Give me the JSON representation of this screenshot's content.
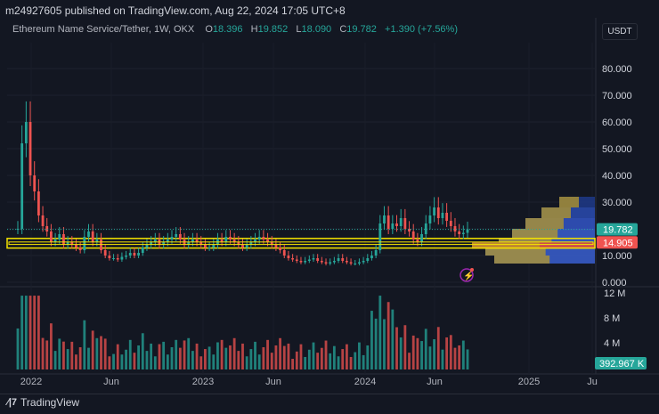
{
  "header": {
    "published": "m24927605 published on TradingView.com, Aug 22, 2024 17:05 UTC+8"
  },
  "legend": {
    "symbol": "Ethereum Name Service/Tether, 1W, OKX",
    "o_label": "O",
    "o": "18.396",
    "h_label": "H",
    "h": "19.852",
    "l_label": "L",
    "l": "18.090",
    "c_label": "C",
    "c": "19.782",
    "change": "+1.390 (+7.56%)"
  },
  "currency_button": "USDT",
  "footer": {
    "brand": "TradingView"
  },
  "chart_data": {
    "type": "candlestick",
    "symbol": "Ethereum Name Service/Tether",
    "interval": "1W",
    "exchange": "OKX",
    "y_axis": {
      "ticks": [
        "80.000",
        "70.000",
        "60.000",
        "50.000",
        "40.000",
        "30.000",
        "20.000",
        "10.000",
        "0.000"
      ],
      "ylim": [
        -1,
        85
      ]
    },
    "volume_axis": {
      "ticks": [
        "12 M",
        "8 M",
        "4 M"
      ]
    },
    "x_axis": {
      "ticks": [
        "2022",
        "Jun",
        "2023",
        "Jun",
        "2024",
        "Jun",
        "2025",
        "Ju"
      ]
    },
    "last_price": "19.782",
    "last_volume": "392.967 K",
    "support_zone_label": "14.905",
    "support_zone": [
      12.8,
      16.4
    ],
    "colors": {
      "up": "#26a69a",
      "down": "#ef5350",
      "zone": "#f5e400"
    },
    "weekly_closes_approx": [
      20,
      52,
      60,
      40,
      34,
      25,
      21,
      19,
      15,
      16,
      18,
      14,
      15,
      14,
      13,
      12,
      17,
      19,
      15,
      16,
      12,
      10,
      9,
      9,
      8.5,
      9.5,
      10,
      11,
      10,
      11,
      13,
      14,
      15,
      16,
      14,
      15,
      16,
      17,
      18,
      16,
      14,
      15,
      16,
      15,
      14,
      13,
      13,
      14,
      16,
      15,
      17,
      16,
      15,
      14,
      13,
      14,
      15,
      16,
      17,
      16,
      15,
      14,
      13,
      12,
      10,
      9,
      8.5,
      8,
      7.5,
      8,
      8.5,
      9,
      8,
      7.5,
      7,
      7.5,
      8,
      9,
      8,
      7.5,
      7,
      7,
      7.5,
      8,
      9,
      10,
      12,
      22,
      25,
      20,
      22,
      21,
      24,
      20,
      19,
      16,
      15,
      18,
      22,
      25,
      28,
      24,
      26,
      23,
      21,
      19,
      18,
      18.5,
      19.8
    ]
  }
}
